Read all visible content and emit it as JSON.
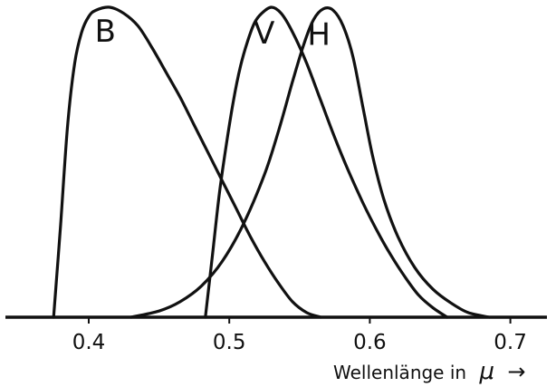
{
  "chart_data": {
    "type": "line",
    "xlabel": "Wellenlänge in",
    "xlabel_unit_symbol": "μ",
    "xlabel_arrow": "→",
    "xlim": [
      0.35,
      0.72
    ],
    "ylim": [
      0,
      1.0
    ],
    "grid": false,
    "x_ticks": [
      {
        "value": 0.4,
        "label": "0.4"
      },
      {
        "value": 0.5,
        "label": "0.5"
      },
      {
        "value": 0.6,
        "label": "0.6"
      },
      {
        "value": 0.7,
        "label": "0.7"
      }
    ],
    "series": [
      {
        "name": "B",
        "color": "#111111",
        "points": [
          [
            0.375,
            0.0
          ],
          [
            0.38,
            0.3
          ],
          [
            0.385,
            0.62
          ],
          [
            0.39,
            0.82
          ],
          [
            0.395,
            0.92
          ],
          [
            0.4,
            0.97
          ],
          [
            0.405,
            0.99
          ],
          [
            0.415,
            1.0
          ],
          [
            0.425,
            0.98
          ],
          [
            0.435,
            0.94
          ],
          [
            0.445,
            0.87
          ],
          [
            0.455,
            0.79
          ],
          [
            0.465,
            0.71
          ],
          [
            0.475,
            0.62
          ],
          [
            0.485,
            0.53
          ],
          [
            0.495,
            0.44
          ],
          [
            0.505,
            0.35
          ],
          [
            0.515,
            0.26
          ],
          [
            0.525,
            0.18
          ],
          [
            0.535,
            0.11
          ],
          [
            0.545,
            0.05
          ],
          [
            0.555,
            0.015
          ],
          [
            0.565,
            0.0
          ]
        ]
      },
      {
        "name": "V",
        "color": "#111111",
        "points": [
          [
            0.483,
            0.0
          ],
          [
            0.488,
            0.2
          ],
          [
            0.493,
            0.4
          ],
          [
            0.498,
            0.56
          ],
          [
            0.503,
            0.7
          ],
          [
            0.508,
            0.81
          ],
          [
            0.513,
            0.89
          ],
          [
            0.518,
            0.95
          ],
          [
            0.523,
            0.98
          ],
          [
            0.53,
            1.0
          ],
          [
            0.537,
            0.98
          ],
          [
            0.545,
            0.92
          ],
          [
            0.555,
            0.82
          ],
          [
            0.565,
            0.7
          ],
          [
            0.575,
            0.58
          ],
          [
            0.585,
            0.47
          ],
          [
            0.595,
            0.37
          ],
          [
            0.605,
            0.28
          ],
          [
            0.615,
            0.2
          ],
          [
            0.625,
            0.13
          ],
          [
            0.635,
            0.07
          ],
          [
            0.645,
            0.03
          ],
          [
            0.655,
            0.0
          ]
        ]
      },
      {
        "name": "H",
        "color": "#111111",
        "points": [
          [
            0.43,
            0.0
          ],
          [
            0.45,
            0.02
          ],
          [
            0.465,
            0.05
          ],
          [
            0.48,
            0.1
          ],
          [
            0.495,
            0.18
          ],
          [
            0.51,
            0.3
          ],
          [
            0.525,
            0.46
          ],
          [
            0.535,
            0.6
          ],
          [
            0.545,
            0.76
          ],
          [
            0.553,
            0.88
          ],
          [
            0.56,
            0.96
          ],
          [
            0.567,
            0.995
          ],
          [
            0.574,
            0.99
          ],
          [
            0.581,
            0.94
          ],
          [
            0.588,
            0.84
          ],
          [
            0.595,
            0.68
          ],
          [
            0.602,
            0.52
          ],
          [
            0.61,
            0.38
          ],
          [
            0.62,
            0.26
          ],
          [
            0.632,
            0.16
          ],
          [
            0.645,
            0.09
          ],
          [
            0.658,
            0.045
          ],
          [
            0.67,
            0.015
          ],
          [
            0.685,
            0.0
          ]
        ]
      }
    ]
  }
}
